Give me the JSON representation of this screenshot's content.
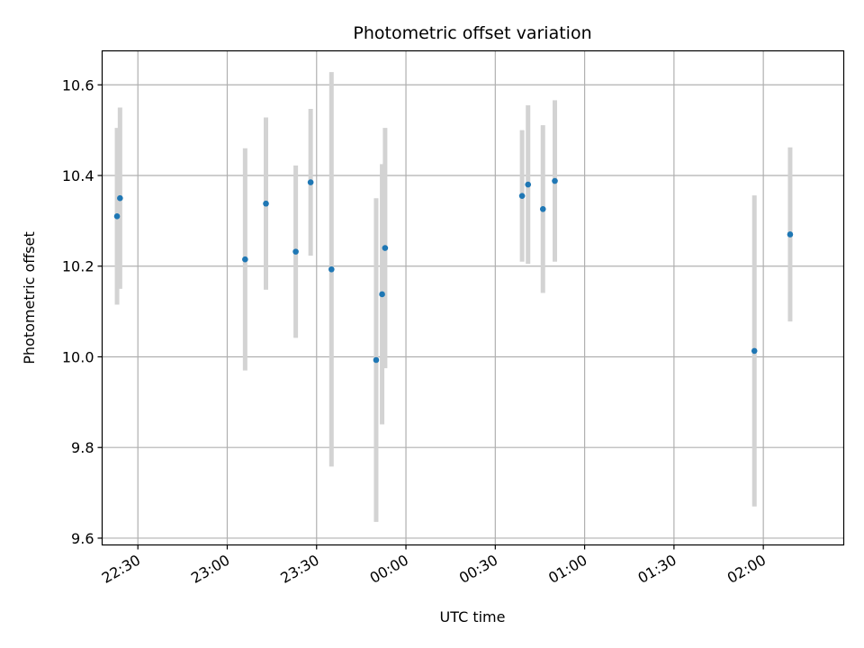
{
  "chart_data": {
    "type": "scatter",
    "title": "Photometric offset variation",
    "xlabel": "UTC time",
    "ylabel": "Photometric offset",
    "x_ticks": [
      "22:30",
      "23:00",
      "23:30",
      "00:00",
      "00:30",
      "01:00",
      "01:30",
      "02:00"
    ],
    "y_ticks": [
      "9.6",
      "9.8",
      "10.0",
      "10.2",
      "10.4",
      "10.6"
    ],
    "xlim": [
      "22:18",
      "02:27"
    ],
    "ylim": [
      9.585,
      10.675
    ],
    "grid": true,
    "colors": {
      "points": "#1f77b4",
      "error_bars": "#d3d3d3",
      "grid": "#b0b0b0"
    },
    "points": [
      {
        "x": "22:23",
        "y": 10.31,
        "yerr": 0.195
      },
      {
        "x": "22:24",
        "y": 10.35,
        "yerr": 0.2
      },
      {
        "x": "23:06",
        "y": 10.215,
        "yerr": 0.245
      },
      {
        "x": "23:13",
        "y": 10.338,
        "yerr": 0.19
      },
      {
        "x": "23:23",
        "y": 10.232,
        "yerr": 0.19
      },
      {
        "x": "23:28",
        "y": 10.385,
        "yerr": 0.162
      },
      {
        "x": "23:35",
        "y": 10.193,
        "yerr": 0.435
      },
      {
        "x": "23:50",
        "y": 9.993,
        "yerr": 0.357
      },
      {
        "x": "23:52",
        "y": 10.138,
        "yerr": 0.287
      },
      {
        "x": "23:53",
        "y": 10.24,
        "yerr": 0.265
      },
      {
        "x": "00:39",
        "y": 10.355,
        "yerr": 0.145
      },
      {
        "x": "00:41",
        "y": 10.38,
        "yerr": 0.175
      },
      {
        "x": "00:46",
        "y": 10.326,
        "yerr": 0.185
      },
      {
        "x": "00:50",
        "y": 10.388,
        "yerr": 0.178
      },
      {
        "x": "01:57",
        "y": 10.013,
        "yerr": 0.343
      },
      {
        "x": "02:09",
        "y": 10.27,
        "yerr": 0.192
      }
    ]
  }
}
